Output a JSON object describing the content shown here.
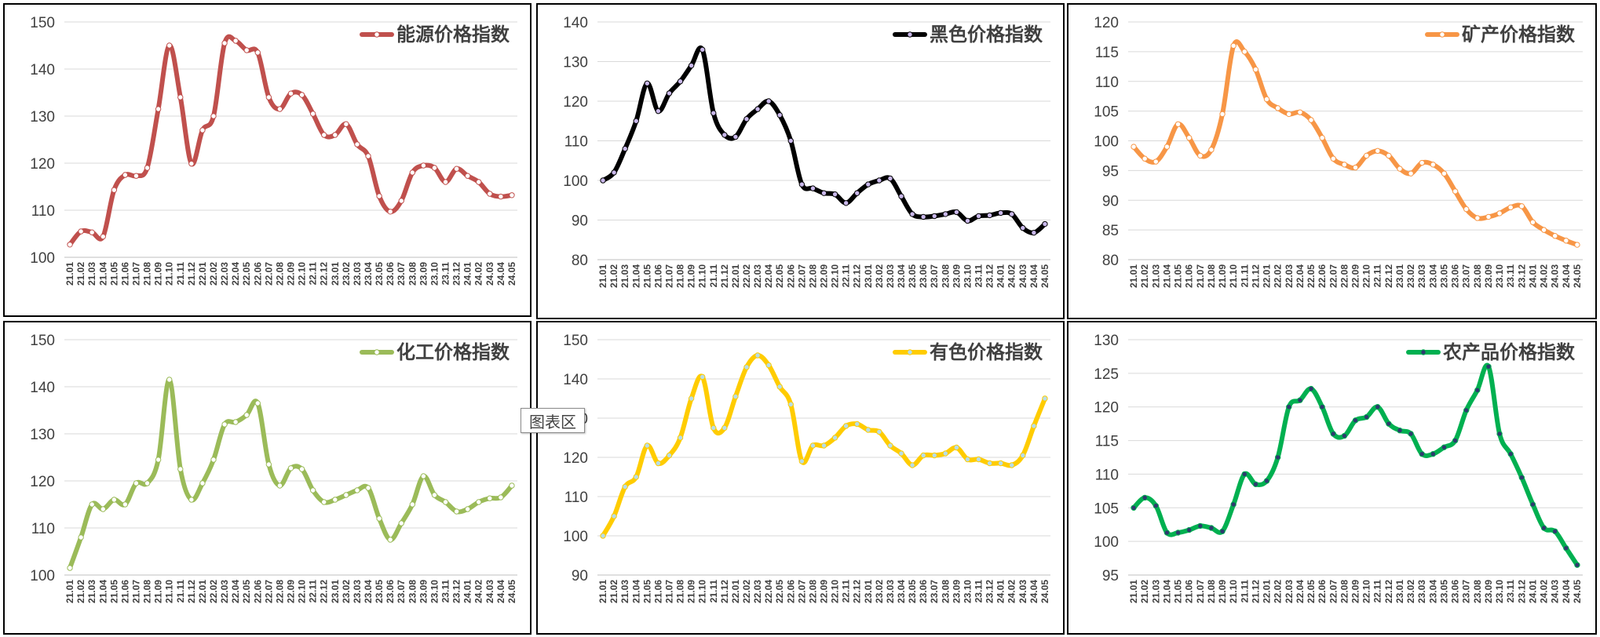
{
  "categories": [
    "21.01",
    "21.02",
    "21.03",
    "21.04",
    "21.05",
    "21.06",
    "21.07",
    "21.08",
    "21.09",
    "21.10",
    "21.11",
    "21.12",
    "22.01",
    "22.02",
    "22.03",
    "22.04",
    "22.05",
    "22.06",
    "22.07",
    "22.08",
    "22.09",
    "22.10",
    "22.11",
    "22.12",
    "23.01",
    "23.02",
    "23.03",
    "23.04",
    "23.05",
    "23.06",
    "23.07",
    "23.08",
    "23.09",
    "23.10",
    "23.11",
    "23.12",
    "24.01",
    "24.02",
    "24.03",
    "24.04",
    "24.05"
  ],
  "chart_area_tooltip": "图表区",
  "chart_data": [
    {
      "type": "line",
      "title": "",
      "legend": "能源价格指数",
      "color": "#C0504D",
      "marker_fill": "#ffffff",
      "ylim": [
        100,
        150
      ],
      "ystep": 10,
      "grid": true,
      "legend_position": "top-right",
      "values": [
        102.7,
        105.5,
        105.3,
        104.4,
        114.3,
        117.5,
        117.3,
        119.0,
        131.5,
        145.0,
        134.0,
        119.9,
        127.0,
        130.0,
        145.5,
        146.0,
        144.0,
        143.5,
        134.0,
        131.5,
        134.8,
        134.5,
        130.5,
        126.0,
        126.0,
        128.3,
        124.0,
        121.5,
        113.0,
        109.7,
        112.0,
        118.0,
        119.5,
        119.0,
        116.0,
        118.8,
        117.3,
        116.0,
        113.5,
        112.9,
        113.2
      ]
    },
    {
      "type": "line",
      "title": "",
      "legend": "黑色价格指数",
      "color": "#000000",
      "marker_fill": "#C9B8EA",
      "ylim": [
        80,
        140
      ],
      "ystep": 10,
      "grid": true,
      "legend_position": "top-right",
      "values": [
        100.0,
        102.0,
        108.0,
        115.0,
        124.5,
        117.5,
        122.0,
        125.0,
        129.0,
        133.0,
        117.0,
        111.5,
        111.0,
        115.5,
        118.0,
        120.0,
        116.5,
        110.0,
        99.0,
        98.0,
        96.8,
        96.5,
        94.3,
        96.8,
        99.0,
        100.0,
        100.5,
        96.0,
        91.5,
        90.8,
        91.0,
        91.5,
        92.0,
        89.8,
        91.0,
        91.2,
        91.8,
        91.5,
        88.0,
        86.8,
        89.0
      ]
    },
    {
      "type": "line",
      "title": "",
      "legend": "矿产价格指数",
      "color": "#F79646",
      "marker_fill": "#ffffff",
      "ylim": [
        80,
        120
      ],
      "ystep": 5,
      "grid": true,
      "legend_position": "top-right",
      "values": [
        99.0,
        97.0,
        96.5,
        99.0,
        102.8,
        100.5,
        97.5,
        98.5,
        104.5,
        116.0,
        115.0,
        112.0,
        107.0,
        105.5,
        104.5,
        104.8,
        103.5,
        100.5,
        97.0,
        96.0,
        95.5,
        97.5,
        98.3,
        97.5,
        95.3,
        94.5,
        96.3,
        96.0,
        94.5,
        91.5,
        88.5,
        87.0,
        87.2,
        87.8,
        88.8,
        89.0,
        86.3,
        85.0,
        84.0,
        83.2,
        82.5
      ]
    },
    {
      "type": "line",
      "title": "",
      "legend": "化工价格指数",
      "color": "#9BBB59",
      "marker_fill": "#ffffff",
      "ylim": [
        100,
        150
      ],
      "ystep": 10,
      "grid": true,
      "legend_position": "top-right",
      "values": [
        101.5,
        108.0,
        115.0,
        114.0,
        116.0,
        115.0,
        119.5,
        119.5,
        124.5,
        141.5,
        122.5,
        116.0,
        119.5,
        124.5,
        132.0,
        132.5,
        134.0,
        136.5,
        123.5,
        119.0,
        122.7,
        122.5,
        118.0,
        115.5,
        116.0,
        117.0,
        118.0,
        118.5,
        112.0,
        107.5,
        111.0,
        115.0,
        121.0,
        117.0,
        115.5,
        113.5,
        114.0,
        115.5,
        116.3,
        116.5,
        119.0
      ]
    },
    {
      "type": "line",
      "title": "",
      "legend": "有色价格指数",
      "color": "#FFCC00",
      "marker_fill": "#B7DDE8",
      "ylim": [
        90,
        150
      ],
      "ystep": 10,
      "grid": true,
      "legend_position": "top-right",
      "values": [
        100.0,
        105.0,
        112.5,
        115.0,
        123.0,
        118.5,
        120.5,
        125.0,
        135.0,
        140.5,
        127.5,
        127.5,
        135.5,
        143.0,
        146.0,
        143.5,
        138.0,
        133.5,
        119.0,
        123.0,
        123.0,
        125.0,
        128.0,
        128.5,
        127.0,
        126.5,
        123.0,
        121.0,
        118.0,
        120.5,
        120.5,
        121.0,
        122.5,
        119.5,
        119.5,
        118.5,
        118.5,
        118.0,
        120.5,
        128.0,
        135.0
      ]
    },
    {
      "type": "line",
      "title": "",
      "legend": "农产品价格指数",
      "color": "#00B050",
      "marker_fill": "#2E3A6E",
      "ylim": [
        95,
        130
      ],
      "ystep": 5,
      "grid": true,
      "legend_position": "top-right",
      "values": [
        105.0,
        106.5,
        105.3,
        101.3,
        101.3,
        101.7,
        102.3,
        102.0,
        101.5,
        105.5,
        110.0,
        108.5,
        109.0,
        112.5,
        120.0,
        121.0,
        122.7,
        120.0,
        116.0,
        115.7,
        118.0,
        118.5,
        120.0,
        117.5,
        116.5,
        116.0,
        113.0,
        113.0,
        114.0,
        115.0,
        119.5,
        122.5,
        126.0,
        116.0,
        113.0,
        109.5,
        105.5,
        102.0,
        101.5,
        99.0,
        96.5
      ]
    }
  ]
}
